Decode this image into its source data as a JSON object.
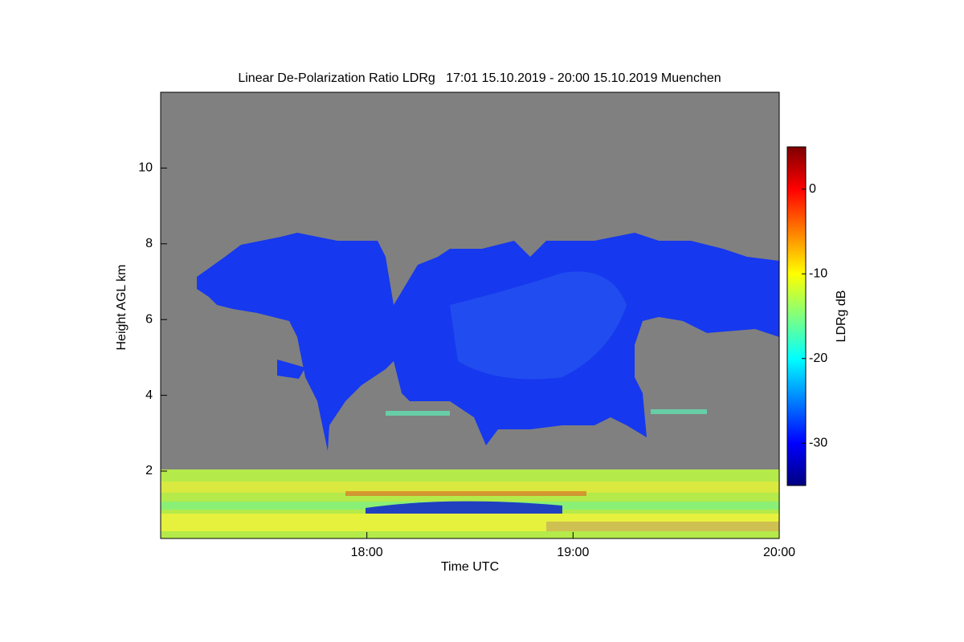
{
  "chart_data": {
    "type": "heatmap",
    "title": "Linear De-Polarization Ratio LDRg   17:01 15.10.2019 - 20:00 15.10.2019 Muenchen",
    "x_label": "Time UTC",
    "y_label": "Height AGL km",
    "xlim": [
      17,
      20
    ],
    "xticks": [
      {
        "value": 18,
        "label": "18:00"
      },
      {
        "value": 19,
        "label": "19:00"
      },
      {
        "value": 20,
        "label": "20:00"
      }
    ],
    "ylim": [
      0.22,
      12
    ],
    "yticks": [
      2,
      4,
      6,
      8,
      10
    ],
    "background": "#808080",
    "colorbar": {
      "label": "LDRg dB",
      "lim": [
        -35,
        5
      ],
      "ticks": [
        0,
        -10,
        -20,
        -30
      ],
      "colormap": "jet"
    }
  }
}
